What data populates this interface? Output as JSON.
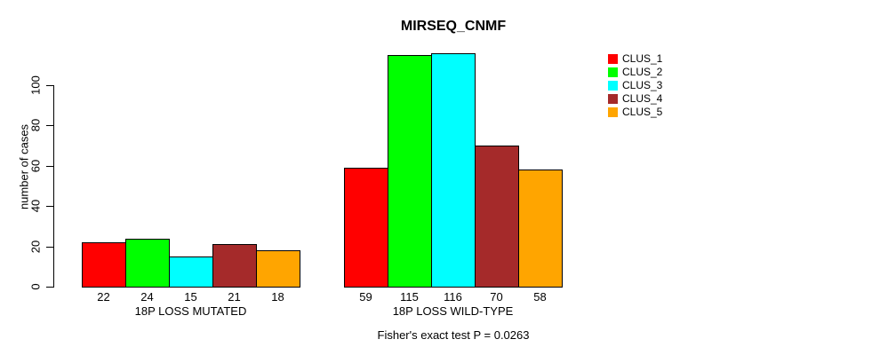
{
  "title": "MIRSEQ_CNMF",
  "ylabel": "number of cases",
  "caption": "Fisher's exact test P = 0.0263",
  "colors": {
    "background": "#FFFFFF",
    "axis": "#000000",
    "text": "#000000",
    "bar_border": "#000000"
  },
  "legend": {
    "position": "right",
    "entries": [
      {
        "label": "CLUS_1",
        "color": "#FF0000"
      },
      {
        "label": "CLUS_2",
        "color": "#00FF00"
      },
      {
        "label": "CLUS_3",
        "color": "#00FFFF"
      },
      {
        "label": "CLUS_4",
        "color": "#A52A2A"
      },
      {
        "label": "CLUS_5",
        "color": "#FFA500"
      }
    ]
  },
  "chart_data": {
    "type": "bar",
    "title": "MIRSEQ_CNMF",
    "xlabel": "",
    "ylabel": "number of cases",
    "categories": [
      "18P LOSS MUTATED",
      "18P LOSS WILD-TYPE"
    ],
    "series": [
      {
        "name": "CLUS_1",
        "color": "#FF0000",
        "values": [
          22,
          59
        ]
      },
      {
        "name": "CLUS_2",
        "color": "#00FF00",
        "values": [
          24,
          115
        ]
      },
      {
        "name": "CLUS_3",
        "color": "#00FFFF",
        "values": [
          15,
          116
        ]
      },
      {
        "name": "CLUS_4",
        "color": "#A52A2A",
        "values": [
          21,
          70
        ]
      },
      {
        "name": "CLUS_5",
        "color": "#FFA500",
        "values": [
          18,
          58
        ]
      }
    ],
    "bar_value_labels": true,
    "yticks": [
      0,
      20,
      40,
      60,
      80,
      100
    ],
    "ylim": [
      0,
      116
    ],
    "grid": false,
    "legend_position": "right",
    "annotation": "Fisher's exact test P = 0.0263"
  }
}
